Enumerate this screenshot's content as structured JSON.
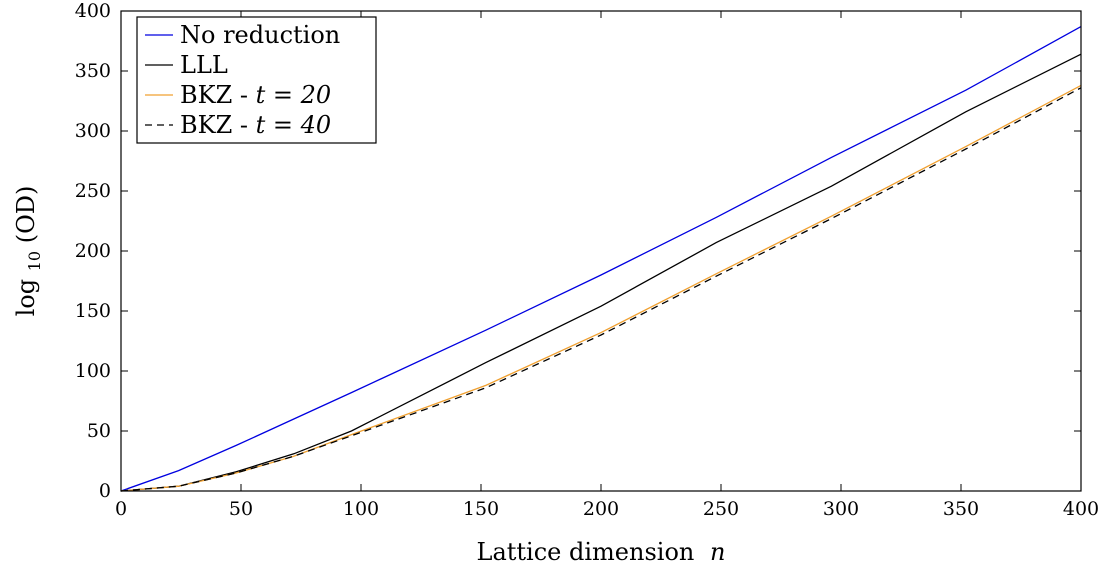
{
  "chart_data": {
    "type": "line",
    "xlabel": "Lattice dimension",
    "xlabel_var": "n",
    "ylabel_base": "log",
    "ylabel_sub": "10",
    "ylabel_arg": "(OD)",
    "xlim": [
      0,
      400
    ],
    "ylim": [
      0,
      400
    ],
    "xticks": [
      0,
      50,
      100,
      150,
      200,
      250,
      300,
      350,
      400
    ],
    "yticks": [
      0,
      50,
      100,
      150,
      200,
      250,
      300,
      350,
      400
    ],
    "grid": false,
    "legend_position": "top-left",
    "x": [
      0,
      24,
      48,
      72,
      96,
      152,
      200,
      248,
      296,
      352,
      400
    ],
    "series": [
      {
        "name": "No reduction",
        "legend_text": "No reduction",
        "legend_var": "",
        "color": "#0000e0",
        "dash": "solid",
        "values": [
          0,
          17,
          38,
          60,
          82,
          134,
          180,
          228,
          278,
          334,
          387
        ]
      },
      {
        "name": "LLL",
        "legend_text": "LLL",
        "legend_var": "",
        "color": "#000000",
        "dash": "solid",
        "values": [
          0,
          4,
          16,
          31,
          50,
          107,
          154,
          207,
          254,
          316,
          364
        ]
      },
      {
        "name": "BKZ - t = 20",
        "legend_text": "BKZ - ",
        "legend_var": "t = 20",
        "color": "#f0a030",
        "dash": "solid",
        "values": [
          0,
          4,
          15,
          29,
          47,
          88,
          132,
          181,
          229,
          287,
          338
        ]
      },
      {
        "name": "BKZ - t = 40",
        "legend_text": "BKZ - ",
        "legend_var": "t = 40",
        "color": "#000000",
        "dash": "dashed",
        "values": [
          0,
          4,
          15,
          29,
          46,
          86,
          130,
          179,
          227,
          285,
          336
        ]
      }
    ]
  }
}
